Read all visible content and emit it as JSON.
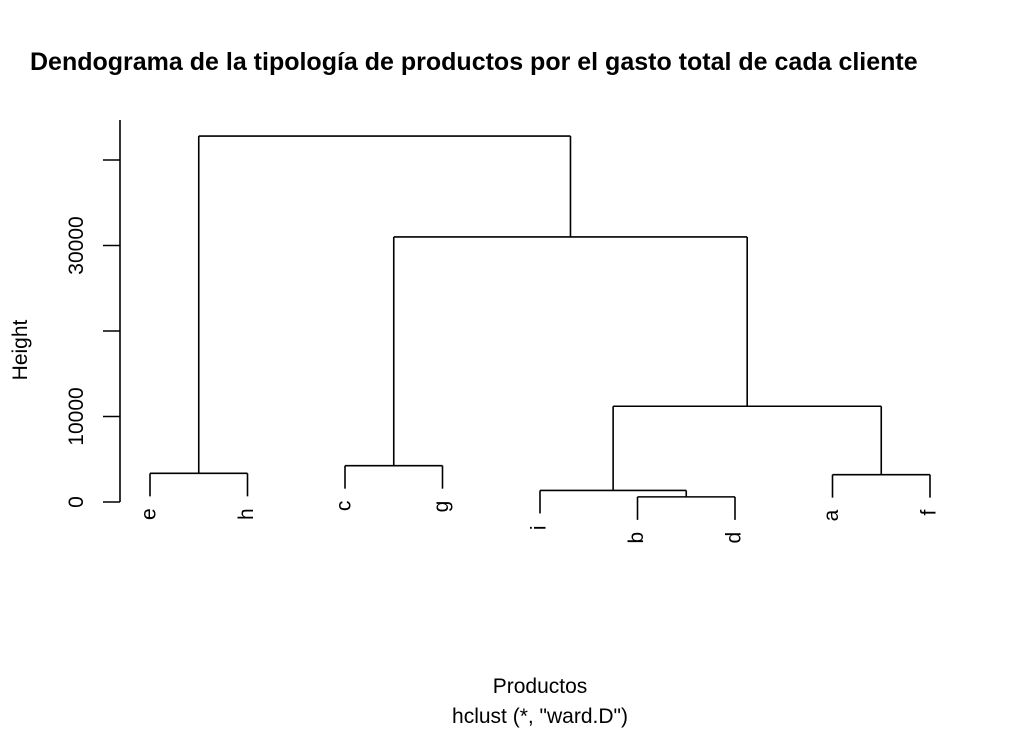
{
  "chart_data": {
    "type": "dendrogram",
    "title": "Dendograma de la tipología de productos por el gasto total de cada cliente",
    "xlabel": "Productos",
    "sublabel": "hclust (*, \"ward.D\")",
    "ylabel": "Height",
    "yticks": [
      0,
      10000,
      20000,
      30000,
      40000
    ],
    "ytick_labels": [
      "0",
      "10000",
      "",
      "30000",
      ""
    ],
    "ylim": [
      0,
      44800
    ],
    "leaves": [
      "e",
      "h",
      "c",
      "g",
      "i",
      "b",
      "d",
      "a",
      "f"
    ],
    "merges": [
      {
        "id": "m_bd",
        "children": [
          "b",
          "d"
        ],
        "height": 600
      },
      {
        "id": "m_i_bd",
        "children": [
          "i",
          "m_bd"
        ],
        "height": 1350
      },
      {
        "id": "m_af",
        "children": [
          "a",
          "f"
        ],
        "height": 3200
      },
      {
        "id": "m_eh",
        "children": [
          "e",
          "h"
        ],
        "height": 3350
      },
      {
        "id": "m_cg",
        "children": [
          "c",
          "g"
        ],
        "height": 4250
      },
      {
        "id": "m_ibd_af",
        "children": [
          "m_i_bd",
          "m_af"
        ],
        "height": 11200
      },
      {
        "id": "m_cg_rest",
        "children": [
          "m_cg",
          "m_ibd_af"
        ],
        "height": 31000
      },
      {
        "id": "m_root",
        "children": [
          "m_eh",
          "m_cg_rest"
        ],
        "height": 42800
      }
    ]
  }
}
